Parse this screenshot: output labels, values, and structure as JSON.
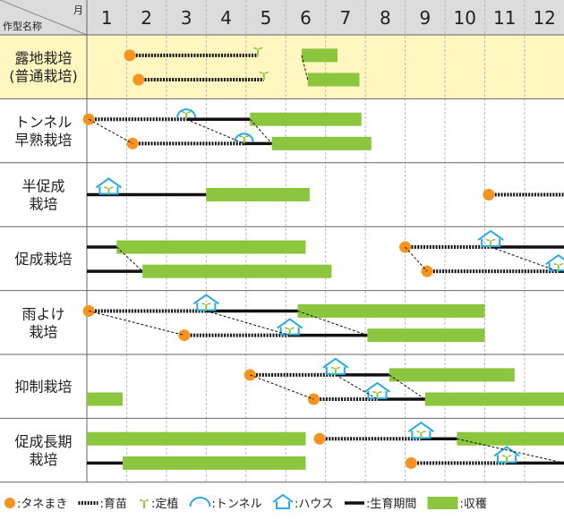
{
  "header": {
    "month_unit": "月",
    "crop_label": "作型名称"
  },
  "months": [
    "1",
    "2",
    "3",
    "4",
    "5",
    "6",
    "7",
    "8",
    "9",
    "10",
    "11",
    "12"
  ],
  "colors": {
    "header_bg": "#dcdcdc",
    "highlight_bg": "#fff6c0",
    "harvest": "#8cc63f",
    "seed": "#f7931e",
    "tunnel": "#29abe2",
    "line": "#111111",
    "grid": "#bbbbbb"
  },
  "rows": [
    {
      "label": [
        "露地栽培",
        "(普通栽培)"
      ],
      "highlight": true,
      "lines": [
        {
          "seed": 2.08,
          "nursery": [
            2.08,
            5.3
          ],
          "plant": 5.3,
          "harvest": [
            [
              6.4,
              7.3
            ]
          ]
        },
        {
          "seed": 2.3,
          "nursery": [
            2.3,
            5.45
          ],
          "plant": 5.45,
          "harvest": [
            [
              6.55,
              7.85
            ]
          ]
        }
      ],
      "links": [
        [
          0,
          6.4,
          1,
          6.55
        ]
      ]
    },
    {
      "label": [
        "トンネル",
        "早熟栽培"
      ],
      "lines": [
        {
          "seed": 1.05,
          "nursery": [
            1.05,
            3.5
          ],
          "plant": 3.5,
          "tunnel": 3.5,
          "growing": [
            3.5,
            5.1
          ],
          "harvest": [
            [
              5.1,
              7.9
            ]
          ]
        },
        {
          "seed": 2.15,
          "nursery": [
            2.15,
            4.95
          ],
          "plant": 4.95,
          "tunnel": 4.95,
          "growing": [
            4.95,
            5.65
          ],
          "harvest": [
            [
              5.65,
              8.15
            ]
          ]
        }
      ],
      "links": [
        [
          0,
          1.05,
          1,
          2.15
        ],
        [
          0,
          3.5,
          1,
          4.95
        ],
        [
          0,
          5.1,
          1,
          5.65
        ]
      ]
    },
    {
      "label": [
        "半促成",
        "栽培"
      ],
      "lines": [
        {
          "house": 1.55,
          "plant": 1.55,
          "growing": [
            1.0,
            4.0
          ],
          "harvest": [
            [
              4.0,
              6.6
            ]
          ],
          "seed": 11.1,
          "nursery": [
            11.1,
            13.0
          ]
        }
      ]
    },
    {
      "label": [
        "促成栽培"
      ],
      "lines": [
        {
          "growing": [
            1.0,
            1.75
          ],
          "harvest": [
            [
              1.75,
              6.5
            ]
          ],
          "seed": 9.0,
          "nursery": [
            9.0,
            11.15
          ],
          "house": 11.15,
          "plant": 11.15,
          "growing2": [
            11.15,
            13.0
          ]
        },
        {
          "growing": [
            1.0,
            2.4
          ],
          "harvest": [
            [
              2.4,
              7.15
            ]
          ],
          "seed": 9.55,
          "nursery": [
            9.55,
            12.85
          ],
          "house": 12.85,
          "plant": 12.85,
          "growing2": [
            12.85,
            13.0
          ]
        }
      ],
      "links": [
        [
          0,
          1.75,
          1,
          2.4
        ],
        [
          0,
          9.0,
          1,
          9.55
        ],
        [
          0,
          11.15,
          1,
          12.85
        ]
      ]
    },
    {
      "label": [
        "雨よけ",
        "栽培"
      ],
      "lines": [
        {
          "seed": 1.05,
          "nursery": [
            1.05,
            4.0
          ],
          "house": 4.0,
          "plant": 4.0,
          "growing": [
            4.0,
            6.3
          ],
          "harvest": [
            [
              6.3,
              11.0
            ]
          ]
        },
        {
          "seed": 3.45,
          "nursery": [
            3.45,
            6.1
          ],
          "house": 6.1,
          "plant": 6.1,
          "growing": [
            6.1,
            8.05
          ],
          "harvest": [
            [
              8.05,
              11.0
            ]
          ]
        }
      ],
      "links": [
        [
          0,
          1.05,
          1,
          3.45
        ],
        [
          0,
          4.0,
          1,
          6.1
        ],
        [
          0,
          6.3,
          1,
          8.05
        ]
      ]
    },
    {
      "label": [
        "抑制栽培"
      ],
      "lines": [
        {
          "seed": 5.1,
          "nursery": [
            5.1,
            7.25
          ],
          "house": 7.25,
          "plant": 7.25,
          "growing": [
            7.25,
            8.6
          ],
          "harvest": [
            [
              8.6,
              11.75
            ]
          ]
        },
        {
          "harvest": [
            [
              1.0,
              1.9
            ]
          ],
          "seed": 6.7,
          "nursery": [
            6.7,
            8.3
          ],
          "house": 8.3,
          "plant": 8.3,
          "growing": [
            8.3,
            9.5
          ],
          "harvest2": [
            [
              9.5,
              13.0
            ]
          ]
        }
      ],
      "links": [
        [
          0,
          5.1,
          1,
          6.7
        ],
        [
          0,
          7.25,
          1,
          8.3
        ],
        [
          0,
          8.6,
          1,
          9.5
        ]
      ]
    },
    {
      "label": [
        "促成長期",
        "栽培"
      ],
      "lines": [
        {
          "harvest": [
            [
              1.0,
              6.5
            ]
          ],
          "seed": 6.85,
          "nursery": [
            6.85,
            9.4
          ],
          "house": 9.4,
          "plant": 9.4,
          "growing": [
            9.4,
            10.3
          ],
          "harvest2": [
            [
              10.3,
              13.0
            ]
          ]
        },
        {
          "growing": [
            1.0,
            1.9
          ],
          "harvest": [
            [
              1.9,
              6.5
            ]
          ],
          "seed": 9.15,
          "nursery": [
            9.15,
            11.55
          ],
          "house": 11.55,
          "plant": 11.55,
          "growing2": [
            11.55,
            13.0
          ]
        }
      ],
      "links": [
        [
          0,
          10.3,
          1,
          13.0
        ]
      ]
    }
  ],
  "legend": [
    {
      "key": "seed",
      "label": ":タネまき"
    },
    {
      "key": "nursery",
      "label": ":育苗"
    },
    {
      "key": "plant",
      "label": ":定植"
    },
    {
      "key": "tunnel",
      "label": ":トンネル"
    },
    {
      "key": "house",
      "label": ":ハウス"
    },
    {
      "key": "growing",
      "label": ":生育期間"
    },
    {
      "key": "harvest",
      "label": ":収穫"
    }
  ]
}
